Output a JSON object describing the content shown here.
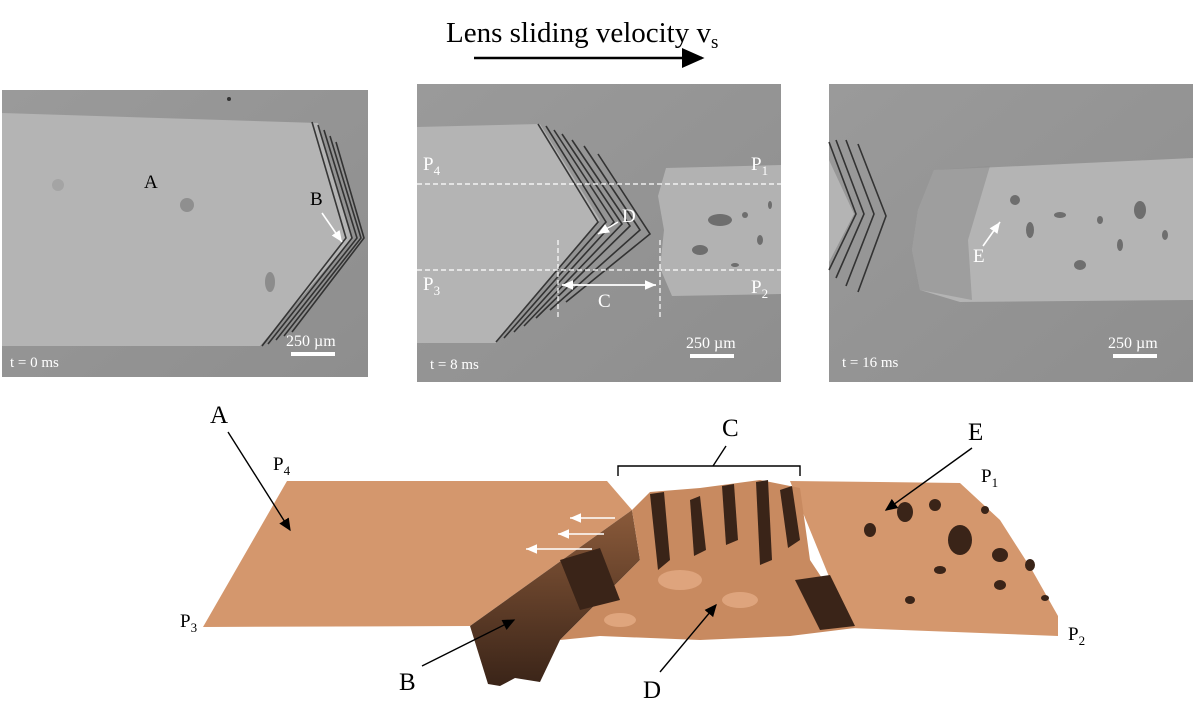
{
  "title": {
    "text": "Lens sliding velocity v",
    "subscript": "s"
  },
  "panels": [
    {
      "time_label": "t = 0 ms",
      "scale_bar": "250 µm",
      "labels": {
        "A": "A",
        "B": "B"
      }
    },
    {
      "time_label": "t = 8 ms",
      "scale_bar": "250 µm",
      "labels": {
        "P4": "P",
        "P4_sub": "4",
        "P1": "P",
        "P1_sub": "1",
        "P3": "P",
        "P3_sub": "3",
        "P2": "P",
        "P2_sub": "2",
        "C": "C",
        "D": "D"
      }
    },
    {
      "time_label": "t = 16 ms",
      "scale_bar": "250 µm",
      "labels": {
        "E": "E"
      }
    }
  ],
  "surface": {
    "labels": {
      "A": "A",
      "B": "B",
      "C": "C",
      "D": "D",
      "E": "E",
      "P1": "P",
      "P1_sub": "1",
      "P2": "P",
      "P2_sub": "2",
      "P3": "P",
      "P3_sub": "3",
      "P4": "P",
      "P4_sub": "4"
    },
    "colors": {
      "flat": "#d4976d",
      "dark": "#3a2418",
      "mid": "#a8704a"
    }
  }
}
